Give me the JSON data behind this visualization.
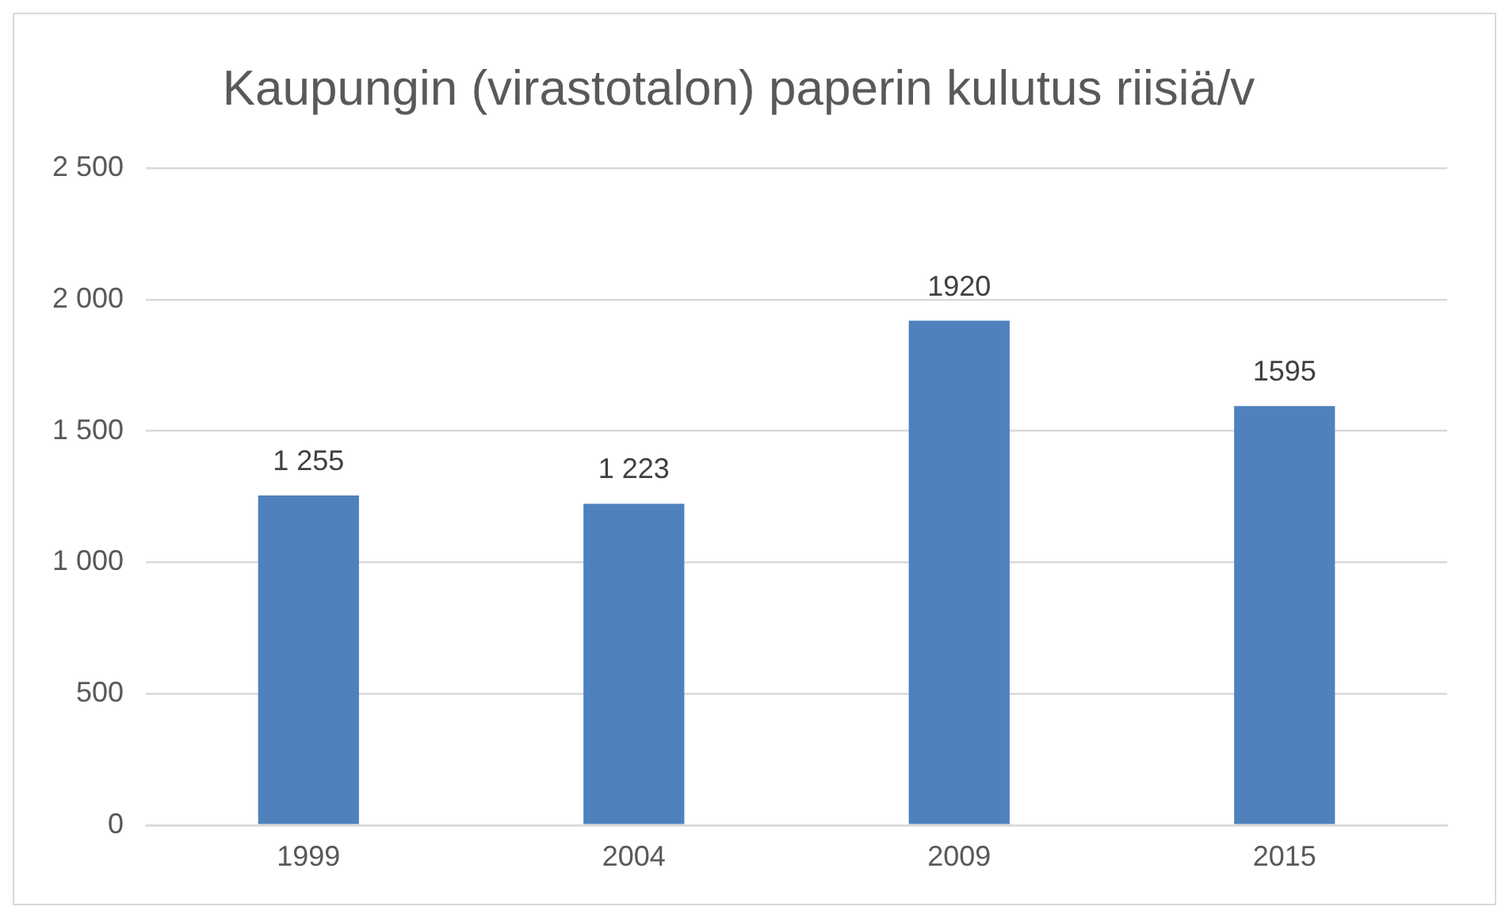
{
  "chart_data": {
    "type": "bar",
    "title": "Kaupungin (virastotalon) paperin kulutus riisiä/v",
    "categories": [
      "1999",
      "2004",
      "2009",
      "2015"
    ],
    "values": [
      1255,
      1223,
      1920,
      1595
    ],
    "value_labels": [
      "1 255",
      "1 223",
      "1920",
      "1595"
    ],
    "color": "#4f81bd",
    "ylim": [
      0,
      2500
    ],
    "yticks": [
      0,
      {
        "value": 500,
        "label": "500"
      },
      {
        "value": 1000,
        "label": "1 000"
      },
      {
        "value": 1500,
        "label": "1 500"
      },
      {
        "value": 2000,
        "label": "2 000"
      },
      {
        "value": 2500,
        "label": "2 500"
      }
    ],
    "grid": "y",
    "legend": false
  }
}
